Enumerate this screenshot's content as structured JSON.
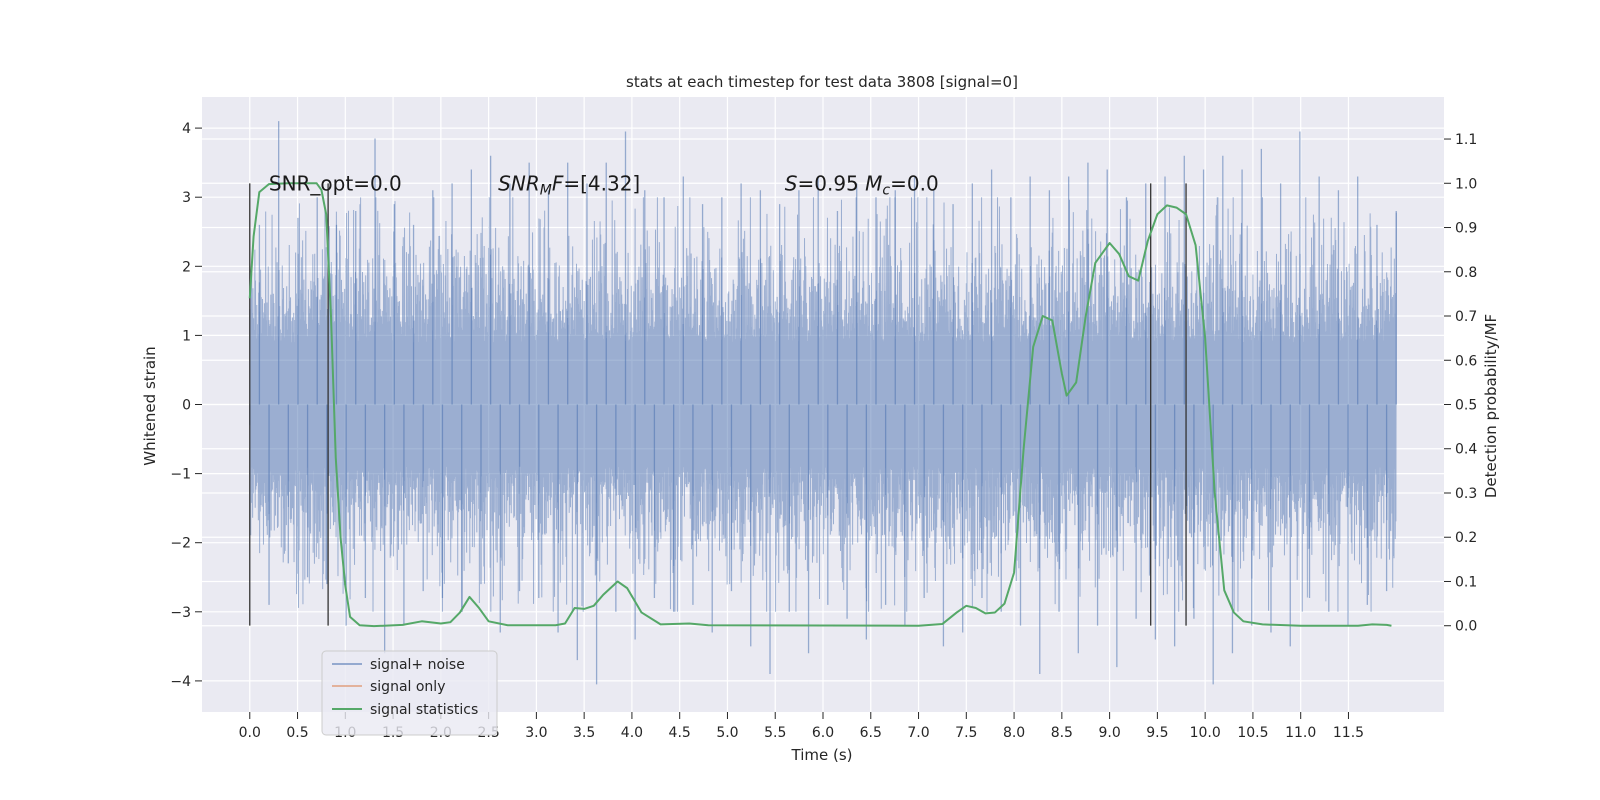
{
  "chart_data": {
    "type": "line",
    "title": "stats at each timestep for test data 3808 [signal=0]",
    "xlabel": "Time (s)",
    "ylabel": "Whitened strain",
    "y2label": "Detection probability/MF",
    "xlim": [
      -0.5,
      12.5
    ],
    "ylim": [
      -4.45,
      4.45
    ],
    "y2lim": [
      -0.195,
      1.195
    ],
    "xticks": [
      0.0,
      0.5,
      1.0,
      1.5,
      2.0,
      2.5,
      3.0,
      3.5,
      4.0,
      4.5,
      5.0,
      5.5,
      6.0,
      6.5,
      7.0,
      7.5,
      8.0,
      8.5,
      9.0,
      9.5,
      10.0,
      10.5,
      11.0,
      11.5
    ],
    "xtick_labels": [
      "0.0",
      "0.5",
      "1.0",
      "1.5",
      "2.0",
      "2.5",
      "3.0",
      "3.5",
      "4.0",
      "4.5",
      "5.0",
      "5.5",
      "6.0",
      "6.5",
      "7.0",
      "7.5",
      "8.0",
      "8.5",
      "9.0",
      "9.5",
      "10.0",
      "10.5",
      "11.0",
      "11.5"
    ],
    "yticks": [
      -4,
      -3,
      -2,
      -1,
      0,
      1,
      2,
      3,
      4
    ],
    "ytick_labels": [
      "−4",
      "−3",
      "−2",
      "−1",
      "0",
      "1",
      "2",
      "3",
      "4"
    ],
    "y2ticks": [
      0.0,
      0.1,
      0.2,
      0.3,
      0.4,
      0.5,
      0.6,
      0.7,
      0.8,
      0.9,
      1.0,
      1.1
    ],
    "y2tick_labels": [
      "0.0",
      "0.1",
      "0.2",
      "0.3",
      "0.4",
      "0.5",
      "0.6",
      "0.7",
      "0.8",
      "0.9",
      "1.0",
      "1.1"
    ],
    "grid": true,
    "legend_position": "lower-left",
    "series": [
      {
        "name": "signal+ noise",
        "color": "#4c72b0",
        "axis": "left",
        "x_range": [
          0.0,
          12.0
        ],
        "values": [
          -0.3,
          2.6,
          -2.9,
          4.1,
          -2.3,
          2.7,
          -2.5,
          3.0,
          -2.6,
          2.6,
          -3.2,
          2.8,
          -2.8,
          3.85,
          -3.6,
          2.9,
          -3.2,
          2.6,
          -2.7,
          3.1,
          -2.8,
          3.2,
          -3.0,
          3.4,
          -2.6,
          3.6,
          -3.3,
          3.2,
          -2.7,
          3.5,
          -2.8,
          3.1,
          -3.3,
          3.5,
          -3.7,
          3.2,
          -4.05,
          3.5,
          -3.0,
          3.95,
          -3.4,
          3.1,
          -2.8,
          3.0,
          -3.0,
          3.3,
          -2.9,
          2.9,
          -3.3,
          3.0,
          -2.7,
          3.2,
          -3.5,
          3.1,
          -3.9,
          2.9,
          -3.0,
          3.1,
          -3.6,
          3.3,
          -2.9,
          2.8,
          -3.1,
          3.2,
          -3.4,
          3.0,
          -2.9,
          3.1,
          -3.2,
          3.3,
          -2.8,
          3.1,
          -3.5,
          2.9,
          -3.3,
          3.2,
          -2.8,
          3.4,
          -3.0,
          3.0,
          -3.2,
          3.3,
          -3.9,
          3.1,
          -3.0,
          3.3,
          -3.6,
          3.5,
          -3.2,
          3.4,
          -3.8,
          3.0,
          -3.1,
          3.2,
          -3.4,
          3.3,
          -3.5,
          3.6,
          -3.1,
          3.4,
          -4.05,
          3.6,
          -3.6,
          3.4,
          -3.2,
          3.7,
          -3.3,
          3.2,
          -3.5,
          3.95,
          -2.8,
          3.3,
          -3.0,
          3.1,
          -3.2,
          3.3,
          -2.9,
          2.6,
          -2.7,
          2.8
        ]
      },
      {
        "name": "signal only",
        "color": "#dd8452",
        "axis": "left",
        "values": []
      },
      {
        "name": "signal statistics",
        "color": "#55a868",
        "axis": "right",
        "points": [
          [
            0.0,
            0.74
          ],
          [
            0.04,
            0.88
          ],
          [
            0.1,
            0.98
          ],
          [
            0.2,
            0.998
          ],
          [
            0.4,
            1.0
          ],
          [
            0.6,
            1.0
          ],
          [
            0.7,
            1.0
          ],
          [
            0.75,
            0.985
          ],
          [
            0.8,
            0.93
          ],
          [
            0.85,
            0.7
          ],
          [
            0.9,
            0.38
          ],
          [
            0.95,
            0.2
          ],
          [
            1.0,
            0.09
          ],
          [
            1.05,
            0.02
          ],
          [
            1.15,
            0.001
          ],
          [
            1.3,
            -0.001
          ],
          [
            1.6,
            0.002
          ],
          [
            1.8,
            0.01
          ],
          [
            2.0,
            0.005
          ],
          [
            2.1,
            0.008
          ],
          [
            2.2,
            0.03
          ],
          [
            2.3,
            0.065
          ],
          [
            2.4,
            0.04
          ],
          [
            2.5,
            0.01
          ],
          [
            2.7,
            0.001
          ],
          [
            3.2,
            0.001
          ],
          [
            3.3,
            0.005
          ],
          [
            3.4,
            0.04
          ],
          [
            3.5,
            0.038
          ],
          [
            3.6,
            0.045
          ],
          [
            3.7,
            0.07
          ],
          [
            3.85,
            0.1
          ],
          [
            3.95,
            0.085
          ],
          [
            4.1,
            0.03
          ],
          [
            4.3,
            0.003
          ],
          [
            4.6,
            0.005
          ],
          [
            4.8,
            0.001
          ],
          [
            7.0,
            0.0
          ],
          [
            7.25,
            0.004
          ],
          [
            7.4,
            0.03
          ],
          [
            7.5,
            0.045
          ],
          [
            7.6,
            0.04
          ],
          [
            7.7,
            0.028
          ],
          [
            7.8,
            0.03
          ],
          [
            7.9,
            0.05
          ],
          [
            8.0,
            0.12
          ],
          [
            8.1,
            0.4
          ],
          [
            8.2,
            0.63
          ],
          [
            8.3,
            0.7
          ],
          [
            8.4,
            0.69
          ],
          [
            8.5,
            0.57
          ],
          [
            8.55,
            0.52
          ],
          [
            8.65,
            0.55
          ],
          [
            8.75,
            0.7
          ],
          [
            8.85,
            0.82
          ],
          [
            9.0,
            0.865
          ],
          [
            9.1,
            0.84
          ],
          [
            9.2,
            0.79
          ],
          [
            9.3,
            0.78
          ],
          [
            9.4,
            0.87
          ],
          [
            9.5,
            0.93
          ],
          [
            9.6,
            0.95
          ],
          [
            9.7,
            0.945
          ],
          [
            9.8,
            0.93
          ],
          [
            9.9,
            0.86
          ],
          [
            10.0,
            0.65
          ],
          [
            10.1,
            0.3
          ],
          [
            10.2,
            0.08
          ],
          [
            10.3,
            0.03
          ],
          [
            10.4,
            0.01
          ],
          [
            10.6,
            0.003
          ],
          [
            11.0,
            0.0
          ],
          [
            11.6,
            0.0
          ],
          [
            11.75,
            0.003
          ],
          [
            11.9,
            0.002
          ],
          [
            11.95,
            0.0
          ]
        ]
      }
    ],
    "vlines": [
      0.0,
      0.82,
      9.43,
      9.8
    ],
    "vline_color": "#333333",
    "annotations": [
      {
        "x": 0.2,
        "y": 3.2,
        "text": "SNR_opt=0.0"
      },
      {
        "x": 2.6,
        "y": 3.2,
        "text": "SNR_MF=[4.32]",
        "math": "snrmf"
      },
      {
        "x": 5.6,
        "y": 3.2,
        "text": "S=0.95   M_c=0.0",
        "math": "smc"
      }
    ],
    "background": "#eaeaf2",
    "grid_color": "#ffffff"
  }
}
